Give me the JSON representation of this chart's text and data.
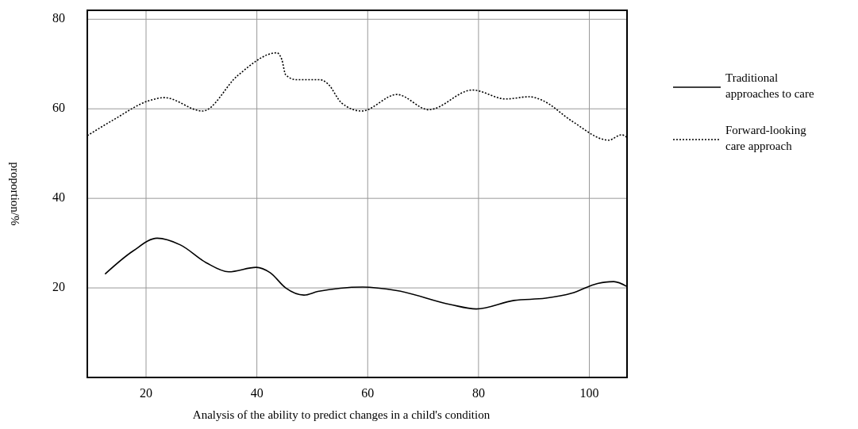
{
  "chart_data": {
    "type": "line",
    "xlabel": "Analysis of the ability to predict changes in a child's condition",
    "ylabel": "proportion/%",
    "xlim": [
      9.4,
      106.8
    ],
    "ylim": [
      0,
      82
    ],
    "xticks": [
      20,
      40,
      60,
      80,
      100
    ],
    "yticks": [
      20,
      40,
      60,
      80
    ],
    "grid": true,
    "legend": "right",
    "marker": "none",
    "series": [
      {
        "name": "Traditional approaches to care",
        "color": "#000000",
        "line_style": "solid",
        "x": [
          12.6,
          17.6,
          22.0,
          26.2,
          30.9,
          34.9,
          39.9,
          42.4,
          45.2,
          48.5,
          51.0,
          59.1,
          65.3,
          74.9,
          79.6,
          86.4,
          92.1,
          96.8,
          101.5,
          104.4,
          106.8
        ],
        "values": [
          23.1,
          28.2,
          31.1,
          29.6,
          25.6,
          23.6,
          24.6,
          23.4,
          20.0,
          18.4,
          19.2,
          20.2,
          19.4,
          16.3,
          15.3,
          17.2,
          17.7,
          18.8,
          21.0,
          21.4,
          20.3
        ]
      },
      {
        "name": "Forward-looking care approach",
        "color": "#000000",
        "line_style": "dotted",
        "x": [
          9.4,
          14.2,
          20.5,
          23.3,
          30.2,
          36.6,
          43.6,
          44.5,
          45.2,
          47.1,
          51.4,
          52.8,
          55.3,
          58.9,
          65.3,
          71.0,
          78.9,
          84.9,
          89.2,
          91.5,
          96.8,
          103.5,
          105.8,
          106.8
        ],
        "values": [
          54.0,
          57.6,
          61.8,
          62.5,
          59.5,
          67.5,
          72.5,
          71.0,
          67.6,
          66.5,
          66.5,
          65.6,
          61.3,
          59.5,
          63.2,
          59.8,
          64.2,
          62.2,
          62.7,
          61.9,
          57.3,
          53.0,
          54.2,
          53.6
        ]
      }
    ]
  }
}
